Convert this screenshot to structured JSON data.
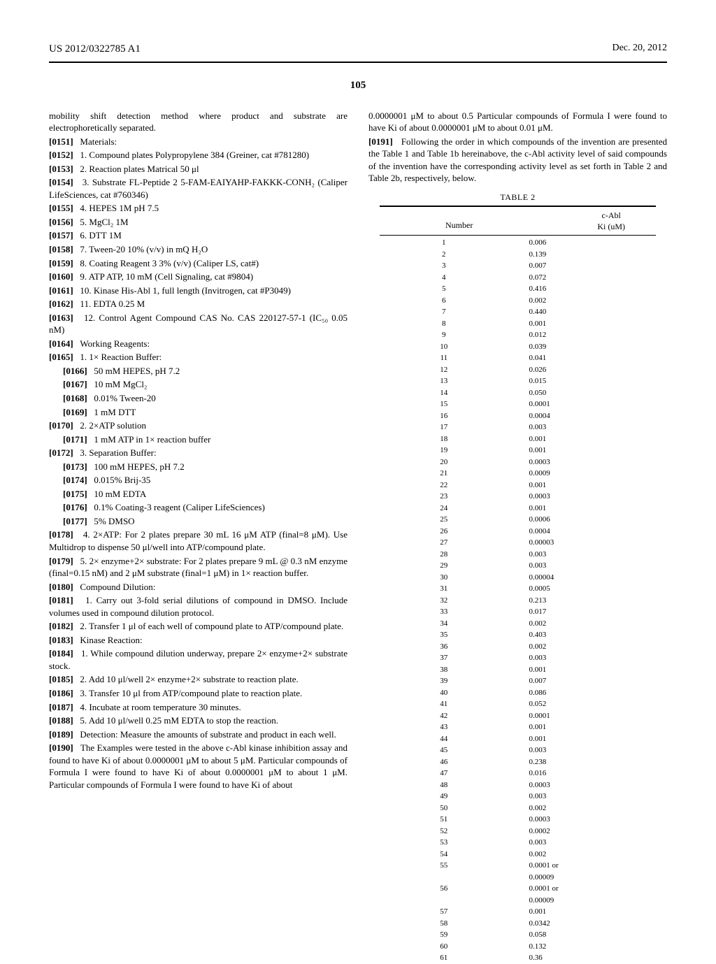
{
  "header": {
    "pubno": "US 2012/0322785 A1",
    "date": "Dec. 20, 2012"
  },
  "pagenum": "105",
  "left": {
    "intro": "mobility shift detection method where product and substrate are electrophoretically separated.",
    "p0151": "Materials:",
    "p0152": "1. Compound plates Polypropylene 384 (Greiner, cat #781280)",
    "p0153": "2. Reaction plates Matrical 50 μl",
    "p0154": "3. Substrate FL-Peptide 2 5-FAM-EAIYAHP-FAKKK-CONH₂ (Caliper LifeSciences, cat #760346)",
    "p0155": "4. HEPES 1M pH 7.5",
    "p0156": "5. MgCl₂ 1M",
    "p0157": "6. DTT 1M",
    "p0158": "7. Tween-20 10% (v/v) in mQ H₂O",
    "p0159": "8. Coating Reagent 3 3% (v/v) (Caliper LS, cat#)",
    "p0160": "9. ATP ATP, 10 mM (Cell Signaling, cat #9804)",
    "p0161": "10. Kinase His-Abl 1, full length (Invitrogen, cat #P3049)",
    "p0162": "11. EDTA 0.25 M",
    "p0163": "12. Control Agent Compound CAS No. CAS 220127-57-1 (IC₅₀ 0.05 nM)",
    "p0164": "Working Reagents:",
    "p0165": "1. 1× Reaction Buffer:",
    "p0166": "50 mM HEPES, pH 7.2",
    "p0167": "10 mM MgCl₂",
    "p0168": "0.01% Tween-20",
    "p0169": "1 mM DTT",
    "p0170": "2. 2×ATP solution",
    "p0171": "1 mM ATP in 1× reaction buffer",
    "p0172": "3. Separation Buffer:",
    "p0173": "100 mM HEPES, pH 7.2",
    "p0174": "0.015% Brij-35",
    "p0175": "10 mM EDTA",
    "p0176": "0.1% Coating-3 reagent (Caliper LifeSciences)",
    "p0177": "5% DMSO",
    "p0178": "4. 2×ATP: For 2 plates prepare 30 mL 16 μM ATP (final=8 μM). Use Multidrop to dispense 50 μl/well into ATP/compound plate.",
    "p0179": "5. 2× enzyme+2× substrate: For 2 plates prepare 9 mL @ 0.3 nM enzyme (final=0.15 nM) and 2 μM substrate (final=1 μM) in 1× reaction buffer.",
    "p0180": "Compound Dilution:",
    "p0181": "1. Carry out 3-fold serial dilutions of compound in DMSO. Include volumes used in compound dilution protocol.",
    "p0182": "2. Transfer 1 μl of each well of compound plate to ATP/compound plate.",
    "p0183": "Kinase Reaction:",
    "p0184": "1. While compound dilution underway, prepare 2× enzyme+2× substrate stock.",
    "p0185": "2. Add 10 μl/well 2× enzyme+2× substrate to reaction plate.",
    "p0186": "3. Transfer 10 μl from ATP/compound plate to reaction plate.",
    "p0187": "4. Incubate at room temperature 30 minutes.",
    "p0188": "5. Add 10 μl/well 0.25 mM EDTA to stop the reaction.",
    "p0189": "Detection: Measure the amounts of substrate and product in each well.",
    "p0190": "The Examples were tested in the above c-Abl kinase inhibition assay and found to have Ki of about 0.0000001 μM to about 5 μM. Particular compounds of Formula I were found to have Ki of about 0.0000001 μM to about 1 μM. Particular compounds of Formula I were found to have Ki of about"
  },
  "right": {
    "intro": "0.0000001 μM to about 0.5 Particular compounds of Formula I were found to have Ki of about 0.0000001 μM to about 0.01 μM.",
    "p0191": "Following the order in which compounds of the invention are presented the Table 1 and Table 1b hereinabove, the c-Abl activity level of said compounds of the invention have the corresponding activity level as set forth in Table 2 and Table 2b, respectively, below."
  },
  "table": {
    "caption": "TABLE 2",
    "head_c1": "Number",
    "head_c2a": "c-Abl",
    "head_c2b": "Ki (uM)",
    "rows": [
      [
        "1",
        "0.006"
      ],
      [
        "2",
        "0.139"
      ],
      [
        "3",
        "0.007"
      ],
      [
        "4",
        "0.072"
      ],
      [
        "5",
        "0.416"
      ],
      [
        "6",
        "0.002"
      ],
      [
        "7",
        "0.440"
      ],
      [
        "8",
        "0.001"
      ],
      [
        "9",
        "0.012"
      ],
      [
        "10",
        "0.039"
      ],
      [
        "11",
        "0.041"
      ],
      [
        "12",
        "0.026"
      ],
      [
        "13",
        "0.015"
      ],
      [
        "14",
        "0.050"
      ],
      [
        "15",
        "0.0001"
      ],
      [
        "16",
        "0.0004"
      ],
      [
        "17",
        "0.003"
      ],
      [
        "18",
        "0.001"
      ],
      [
        "19",
        "0.001"
      ],
      [
        "20",
        "0.0003"
      ],
      [
        "21",
        "0.0009"
      ],
      [
        "22",
        "0.001"
      ],
      [
        "23",
        "0.0003"
      ],
      [
        "24",
        "0.001"
      ],
      [
        "25",
        "0.0006"
      ],
      [
        "26",
        "0.0004"
      ],
      [
        "27",
        "0.00003"
      ],
      [
        "28",
        "0.003"
      ],
      [
        "29",
        "0.003"
      ],
      [
        "30",
        "0.00004"
      ],
      [
        "31",
        "0.0005"
      ],
      [
        "32",
        "0.213"
      ],
      [
        "33",
        "0.017"
      ],
      [
        "34",
        "0.002"
      ],
      [
        "35",
        "0.403"
      ],
      [
        "36",
        "0.002"
      ],
      [
        "37",
        "0.003"
      ],
      [
        "38",
        "0.001"
      ],
      [
        "39",
        "0.007"
      ],
      [
        "40",
        "0.086"
      ],
      [
        "41",
        "0.052"
      ],
      [
        "42",
        "0.0001"
      ],
      [
        "43",
        "0.001"
      ],
      [
        "44",
        "0.001"
      ],
      [
        "45",
        "0.003"
      ],
      [
        "46",
        "0.238"
      ],
      [
        "47",
        "0.016"
      ],
      [
        "48",
        "0.0003"
      ],
      [
        "49",
        "0.003"
      ],
      [
        "50",
        "0.002"
      ],
      [
        "51",
        "0.0003"
      ],
      [
        "52",
        "0.0002"
      ],
      [
        "53",
        "0.003"
      ],
      [
        "54",
        "0.002"
      ],
      [
        "55",
        "0.0001 or"
      ],
      [
        "",
        "0.00009"
      ],
      [
        "56",
        "0.0001 or"
      ],
      [
        "",
        "0.00009"
      ],
      [
        "57",
        "0.001"
      ],
      [
        "58",
        "0.0342"
      ],
      [
        "59",
        "0.058"
      ],
      [
        "60",
        "0.132"
      ],
      [
        "61",
        "0.36"
      ]
    ]
  }
}
